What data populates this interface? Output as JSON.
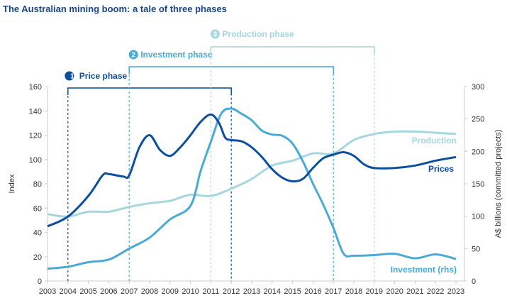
{
  "chart_data": {
    "type": "line",
    "title": "The Australian mining boom: a tale of three phases",
    "ylabel": "Index",
    "y2label": "A$ billions (committed projects)",
    "ylim": [
      0,
      160
    ],
    "y2lim": [
      0,
      300
    ],
    "yticks": [
      0,
      20,
      40,
      60,
      80,
      100,
      120,
      140,
      160
    ],
    "y2ticks": [
      0,
      50,
      100,
      150,
      200,
      250,
      300
    ],
    "xlim": [
      2003,
      2023
    ],
    "xticks": [
      2003,
      2004,
      2005,
      2006,
      2007,
      2008,
      2009,
      2010,
      2011,
      2012,
      2013,
      2014,
      2015,
      2016,
      2017,
      2018,
      2019,
      2020,
      2021,
      2022,
      2023
    ],
    "grid": false,
    "series": [
      {
        "name": "Prices",
        "axis": "left",
        "color": "#0d4f9e",
        "x": [
          2003,
          2004,
          2005,
          2005.7,
          2006,
          2006.7,
          2007,
          2007.5,
          2008,
          2008.5,
          2009,
          2009.5,
          2010,
          2010.5,
          2011,
          2011.4,
          2011.7,
          2012,
          2012.5,
          2013,
          2013.5,
          2014,
          2014.5,
          2015,
          2015.5,
          2016,
          2016.5,
          2017,
          2017.5,
          2018,
          2018.5,
          2019,
          2020,
          2021,
          2022,
          2023
        ],
        "y": [
          45,
          53,
          70,
          87,
          88,
          86,
          87,
          110,
          120,
          108,
          103,
          110,
          120,
          131,
          137,
          130,
          118,
          116,
          115,
          110,
          102,
          92,
          85,
          82,
          84,
          93,
          101,
          104,
          106,
          103,
          96,
          93,
          93,
          95,
          99,
          102
        ]
      },
      {
        "name": "Investment (rhs)",
        "axis": "right",
        "color": "#4aaad6",
        "x": [
          2003,
          2004,
          2005,
          2006,
          2007,
          2008,
          2009,
          2010,
          2010.5,
          2011,
          2011.5,
          2012,
          2012.5,
          2013,
          2013.5,
          2014,
          2014.5,
          2015,
          2015.5,
          2016,
          2016.5,
          2017,
          2017.5,
          2018,
          2019,
          2020,
          2021,
          2022,
          2023
        ],
        "y": [
          19,
          22,
          29,
          33,
          50,
          67,
          95,
          116,
          170,
          215,
          258,
          266,
          258,
          248,
          232,
          226,
          224,
          212,
          185,
          150,
          118,
          82,
          42,
          39,
          40,
          42,
          35,
          41,
          34
        ]
      },
      {
        "name": "Production",
        "axis": "left",
        "color": "#a6d6de",
        "x": [
          2003,
          2004,
          2005,
          2006,
          2007,
          2008,
          2009,
          2010,
          2011,
          2012,
          2013,
          2014,
          2015,
          2016,
          2017,
          2018,
          2019,
          2020,
          2021,
          2022,
          2023
        ],
        "y": [
          55,
          53,
          57,
          57,
          61,
          64,
          66,
          71,
          70,
          76,
          84,
          95,
          99,
          105,
          105,
          116,
          121,
          123,
          123,
          122,
          121
        ]
      }
    ],
    "phases": [
      {
        "num": "1",
        "label": "Price phase",
        "start": 2004,
        "end": 2012,
        "color": "#0d4f9e"
      },
      {
        "num": "2",
        "label": "Investment phase",
        "start": 2007,
        "end": 2017,
        "color": "#4aaad6"
      },
      {
        "num": "3",
        "label": "Production phase",
        "start": 2011,
        "end": 2019,
        "color": "#a6d6de"
      }
    ]
  }
}
